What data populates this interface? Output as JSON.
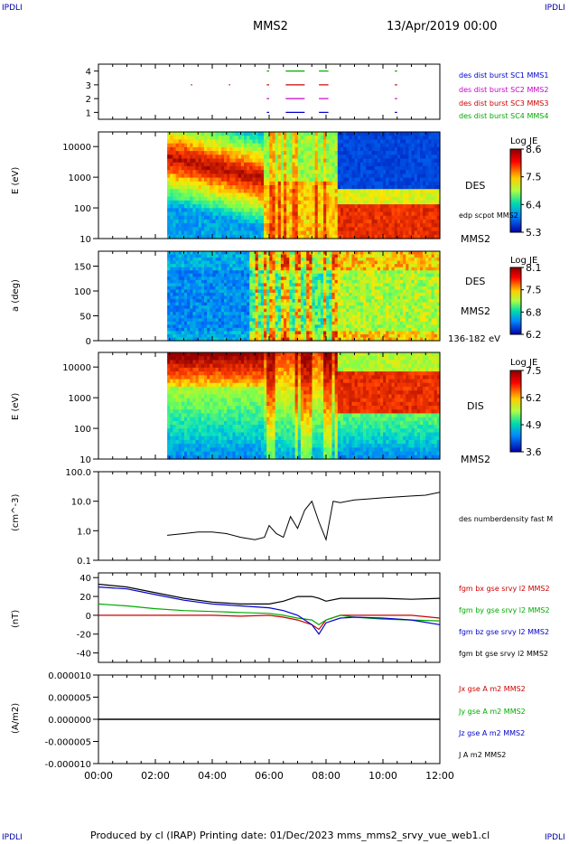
{
  "corner_labels": [
    "IPDLI",
    "IPDLI",
    "IPDLI",
    "IPDLI"
  ],
  "header": {
    "spacecraft": "MMS2",
    "datetime": "13/Apr/2019 00:00"
  },
  "footer": "Produced by cl (IRAP)   Printing date: 01/Dec/2023   mms_mms2_srvy_vue_web1.cl",
  "colors": {
    "sc1": "#0000cc",
    "sc2": "#cc00cc",
    "sc3": "#cc0000",
    "sc4": "#00aa00",
    "bx": "#cc0000",
    "by": "#00aa00",
    "bz": "#0000cc",
    "bt": "#000000"
  },
  "chart_data": [
    {
      "type": "scatter",
      "panel": "burst-availability",
      "xlim": [
        "00:00",
        "12:00"
      ],
      "ylim": [
        0.5,
        4.5
      ],
      "ticks_y": [
        "1",
        "2",
        "3",
        "4"
      ],
      "series": [
        {
          "name": "des dist burst SC1 MMS1",
          "y": 1,
          "x_intervals": [
            [
              "05:55",
              "06:00"
            ],
            [
              "06:35",
              "07:15"
            ],
            [
              "07:45",
              "08:05"
            ],
            [
              "10:25",
              "10:30"
            ]
          ]
        },
        {
          "name": "des dist burst SC2 MMS2",
          "y": 2,
          "x_intervals": [
            [
              "05:55",
              "06:00"
            ],
            [
              "06:35",
              "07:15"
            ],
            [
              "07:45",
              "08:05"
            ],
            [
              "10:25",
              "10:30"
            ]
          ]
        },
        {
          "name": "des dist burst SC3 MMS3",
          "y": 3,
          "x_intervals": [
            [
              "03:15",
              "03:17"
            ],
            [
              "04:35",
              "04:37"
            ],
            [
              "05:55",
              "06:00"
            ],
            [
              "06:35",
              "07:15"
            ],
            [
              "07:45",
              "08:05"
            ],
            [
              "10:25",
              "10:30"
            ]
          ]
        },
        {
          "name": "des dist burst SC4 MMS4",
          "y": 4,
          "x_intervals": [
            [
              "05:55",
              "06:00"
            ],
            [
              "06:35",
              "07:15"
            ],
            [
              "07:45",
              "08:05"
            ],
            [
              "10:25",
              "10:30"
            ]
          ]
        }
      ]
    },
    {
      "type": "heatmap",
      "panel": "des-energy",
      "ylabel": "E (eV)",
      "yscale": "log",
      "ylim": [
        10,
        30000
      ],
      "ticks_y": [
        "10",
        "100",
        "1000",
        "10000"
      ],
      "right_label": "DES",
      "extra_label": "edp scpot MMS2",
      "spacecraft": "MMS2",
      "colorbar": {
        "title": "Log JE",
        "ticks": [
          "8.6",
          "7.5",
          "6.4",
          "5.3"
        ],
        "range": [
          5.3,
          8.6
        ]
      }
    },
    {
      "type": "heatmap",
      "panel": "des-pitch-angle",
      "ylabel": "a (deg)",
      "ylim": [
        0,
        180
      ],
      "ticks_y": [
        "0",
        "50",
        "100",
        "150"
      ],
      "right_label": "DES",
      "spacecraft": "MMS2",
      "energy_range": "136-182 eV",
      "colorbar": {
        "title": "Log JE",
        "ticks": [
          "8.1",
          "7.5",
          "6.8",
          "6.2"
        ],
        "range": [
          6.2,
          8.1
        ]
      }
    },
    {
      "type": "heatmap",
      "panel": "dis-energy",
      "ylabel": "E (eV)",
      "yscale": "log",
      "ylim": [
        10,
        30000
      ],
      "ticks_y": [
        "10",
        "100",
        "1000",
        "10000"
      ],
      "right_label": "DIS",
      "spacecraft": "MMS2",
      "colorbar": {
        "title": "Log JE",
        "ticks": [
          "7.5",
          "6.2",
          "4.9",
          "3.6"
        ],
        "range": [
          3.6,
          7.5
        ]
      }
    },
    {
      "type": "line",
      "panel": "density",
      "ylabel": "(cm^-3)",
      "yscale": "log",
      "ylim": [
        0.1,
        100
      ],
      "ticks_y": [
        "0.1",
        "1.0",
        "10.0",
        "100.0"
      ],
      "series": [
        {
          "name": "des numberdensity fast M",
          "x": [
            "02:25",
            "03:00",
            "03:30",
            "04:00",
            "04:30",
            "05:00",
            "05:30",
            "05:50",
            "06:00",
            "06:15",
            "06:30",
            "06:45",
            "07:00",
            "07:15",
            "07:30",
            "07:45",
            "08:00",
            "08:15",
            "08:30",
            "09:00",
            "09:30",
            "10:00",
            "10:30",
            "11:00",
            "11:30",
            "12:00"
          ],
          "y": [
            0.7,
            0.8,
            0.9,
            0.9,
            0.8,
            0.6,
            0.5,
            0.6,
            1.5,
            0.8,
            0.6,
            3.0,
            1.2,
            5.0,
            10.0,
            2.0,
            0.5,
            10.0,
            9.0,
            11.0,
            12.0,
            13.0,
            14.0,
            15.0,
            16.0,
            20.0
          ]
        }
      ]
    },
    {
      "type": "line",
      "panel": "magnetic-field",
      "ylabel": "(nT)",
      "ylim": [
        -50,
        45
      ],
      "ticks_y": [
        "-40",
        "-20",
        "0",
        "20",
        "40"
      ],
      "series": [
        {
          "name": "fgm bx gse srvy l2 MMS2",
          "x": [
            "00:00",
            "01:00",
            "02:00",
            "03:00",
            "04:00",
            "05:00",
            "06:00",
            "06:30",
            "07:00",
            "07:30",
            "07:45",
            "08:00",
            "08:30",
            "09:00",
            "10:00",
            "11:00",
            "12:00"
          ],
          "y": [
            0,
            0,
            0,
            0,
            0,
            -1,
            0,
            -2,
            -5,
            -10,
            -15,
            -5,
            0,
            0,
            0,
            0,
            -3
          ]
        },
        {
          "name": "fgm by gse srvy l2 MMS2",
          "x": [
            "00:00",
            "01:00",
            "02:00",
            "03:00",
            "04:00",
            "05:00",
            "06:00",
            "06:30",
            "07:00",
            "07:30",
            "07:45",
            "08:00",
            "08:30",
            "09:00",
            "10:00",
            "11:00",
            "12:00"
          ],
          "y": [
            12,
            10,
            7,
            5,
            4,
            3,
            2,
            0,
            -3,
            -5,
            -10,
            -5,
            0,
            -2,
            -4,
            -5,
            -6
          ]
        },
        {
          "name": "fgm bz gse srvy l2 MMS2",
          "x": [
            "00:00",
            "01:00",
            "02:00",
            "03:00",
            "04:00",
            "05:00",
            "06:00",
            "06:30",
            "07:00",
            "07:30",
            "07:45",
            "08:00",
            "08:30",
            "09:00",
            "10:00",
            "11:00",
            "12:00"
          ],
          "y": [
            30,
            28,
            22,
            16,
            12,
            10,
            8,
            5,
            0,
            -10,
            -20,
            -8,
            -3,
            -2,
            -3,
            -5,
            -10
          ]
        },
        {
          "name": "fgm bt gse srvy l2 MMS2",
          "x": [
            "00:00",
            "01:00",
            "02:00",
            "03:00",
            "04:00",
            "05:00",
            "06:00",
            "06:30",
            "07:00",
            "07:30",
            "07:45",
            "08:00",
            "08:30",
            "09:00",
            "10:00",
            "11:00",
            "12:00"
          ],
          "y": [
            33,
            30,
            24,
            18,
            14,
            12,
            12,
            15,
            20,
            20,
            18,
            15,
            18,
            18,
            18,
            17,
            18
          ]
        }
      ]
    },
    {
      "type": "line",
      "panel": "current-density",
      "ylabel": "(A/m2)",
      "ylim": [
        -0.0001,
        0.0001
      ],
      "ticks_y": [
        "-0.000010",
        "-0.000005",
        "0.000000",
        "0.000005",
        "0.000010"
      ],
      "series": [
        {
          "name": "Jx gse A m2 MMS2",
          "x": [
            "00:00",
            "12:00"
          ],
          "y": [
            0,
            0
          ]
        },
        {
          "name": "Jy gse A m2 MMS2",
          "x": [
            "00:00",
            "12:00"
          ],
          "y": [
            0,
            0
          ]
        },
        {
          "name": "Jz gse A m2 MMS2",
          "x": [
            "00:00",
            "12:00"
          ],
          "y": [
            0,
            0
          ]
        },
        {
          "name": "J A m2 MMS2",
          "x": [
            "00:00",
            "12:00"
          ],
          "y": [
            0,
            0
          ]
        }
      ]
    }
  ],
  "x_ticks": [
    "00:00",
    "02:00",
    "04:00",
    "06:00",
    "08:00",
    "10:00",
    "12:00"
  ]
}
